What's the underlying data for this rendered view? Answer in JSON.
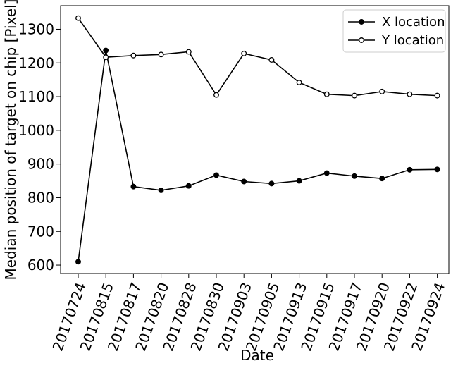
{
  "chart_data": {
    "type": "line",
    "title": "",
    "xlabel": "Date",
    "ylabel": "Median position of target on chip [Pixel]",
    "categories": [
      "20170724",
      "20170815",
      "20170817",
      "20170820",
      "20170828",
      "20170830",
      "20170903",
      "20170905",
      "20170913",
      "20170915",
      "20170917",
      "20170920",
      "20170922",
      "20170924"
    ],
    "ylim": [
      575,
      1370
    ],
    "yticks": [
      600,
      700,
      800,
      900,
      1000,
      1100,
      1200,
      1300
    ],
    "grid": false,
    "legend_position": "top-right",
    "series": [
      {
        "name": "X location",
        "marker": "filled-circle",
        "color": "#000000",
        "values": [
          610,
          1237,
          833,
          822,
          835,
          867,
          848,
          842,
          850,
          873,
          864,
          857,
          883,
          884
        ]
      },
      {
        "name": "Y location",
        "marker": "open-circle",
        "color": "#000000",
        "values": [
          1333,
          1217,
          1222,
          1225,
          1233,
          1105,
          1228,
          1209,
          1142,
          1107,
          1103,
          1115,
          1107,
          1103
        ]
      }
    ]
  }
}
